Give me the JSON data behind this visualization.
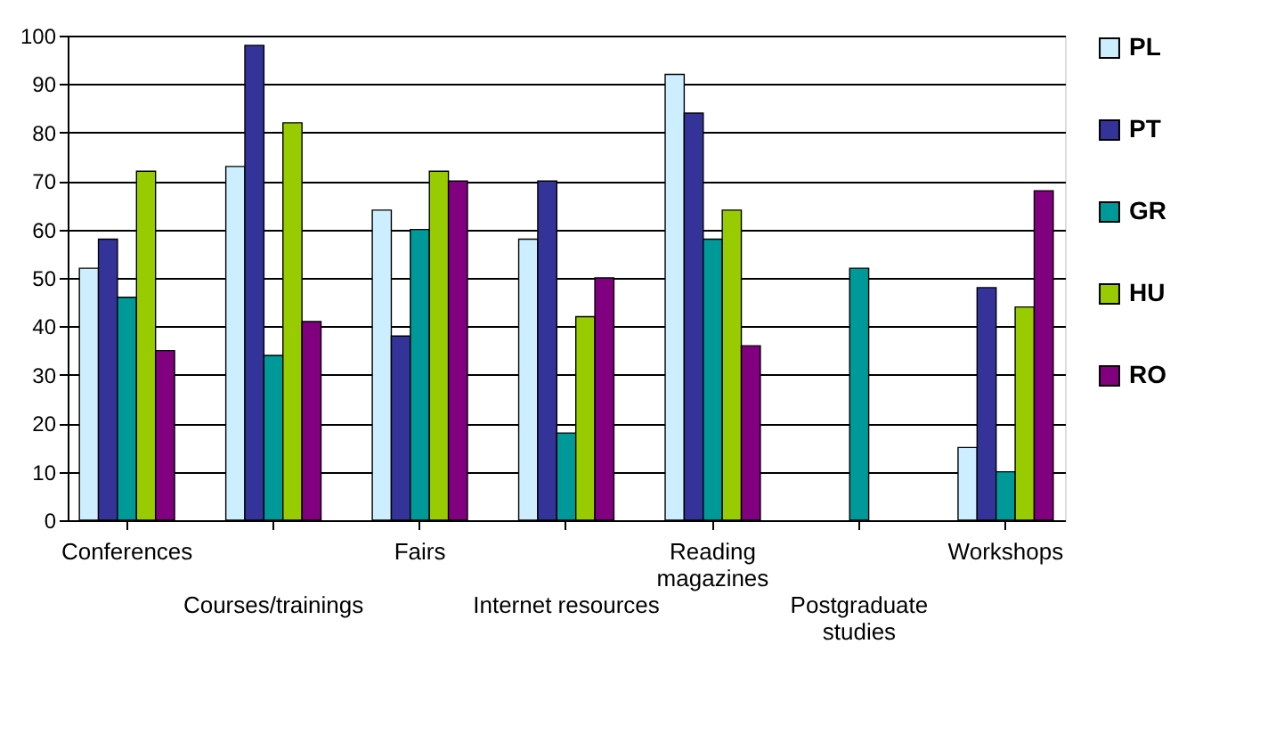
{
  "chart_data": {
    "type": "bar",
    "categories": [
      "Conferences",
      "Courses/trainings",
      "Fairs",
      "Internet resources",
      "Reading\nmagazines",
      "Postgraduate\nstudies",
      "Workshops"
    ],
    "series": [
      {
        "name": "PL",
        "color": "#cceeff",
        "values": [
          52,
          73,
          64,
          58,
          92,
          null,
          15
        ]
      },
      {
        "name": "PT",
        "color": "#333399",
        "values": [
          58,
          98,
          38,
          70,
          84,
          null,
          48
        ]
      },
      {
        "name": "GR",
        "color": "#009999",
        "values": [
          46,
          34,
          60,
          18,
          58,
          52,
          10
        ]
      },
      {
        "name": "HU",
        "color": "#99cc00",
        "values": [
          72,
          82,
          72,
          42,
          64,
          null,
          44
        ]
      },
      {
        "name": "RO",
        "color": "#800080",
        "values": [
          35,
          41,
          70,
          50,
          36,
          null,
          68
        ]
      }
    ],
    "ylim": [
      0,
      100
    ],
    "yticks": [
      0,
      10,
      20,
      30,
      40,
      50,
      60,
      70,
      80,
      90,
      100
    ],
    "grid": "y",
    "legend": "right"
  }
}
